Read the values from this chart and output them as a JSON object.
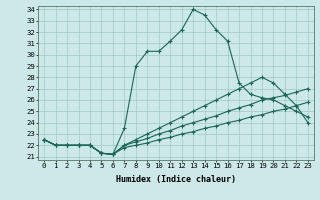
{
  "xlabel": "Humidex (Indice chaleur)",
  "bg_color": "#cde8e8",
  "grid_color": "#a0c8c0",
  "line_color": "#1a6655",
  "xmin": -0.5,
  "xmax": 23.5,
  "ymin": 20.7,
  "ymax": 34.3,
  "yticks": [
    21,
    22,
    23,
    24,
    25,
    26,
    27,
    28,
    29,
    30,
    31,
    32,
    33,
    34
  ],
  "xticks": [
    0,
    1,
    2,
    3,
    4,
    5,
    6,
    7,
    8,
    9,
    10,
    11,
    12,
    13,
    14,
    15,
    16,
    17,
    18,
    19,
    20,
    21,
    22,
    23
  ],
  "lines": [
    {
      "x": [
        0,
        1,
        2,
        3,
        4,
        5,
        6,
        7,
        8,
        9,
        10,
        11,
        12,
        13,
        14,
        15,
        16,
        17,
        18,
        19,
        20,
        21,
        22,
        23
      ],
      "y": [
        22.5,
        22.0,
        22.0,
        22.0,
        22.0,
        21.3,
        21.2,
        23.5,
        29.0,
        30.3,
        30.3,
        31.2,
        32.2,
        34.0,
        33.5,
        32.2,
        31.2,
        27.5,
        26.5,
        26.2,
        26.0,
        25.5,
        25.0,
        24.5
      ]
    },
    {
      "x": [
        0,
        1,
        2,
        3,
        4,
        5,
        6,
        7,
        8,
        9,
        10,
        11,
        12,
        13,
        14,
        15,
        16,
        17,
        18,
        19,
        20,
        21,
        22,
        23
      ],
      "y": [
        22.5,
        22.0,
        22.0,
        22.0,
        22.0,
        21.3,
        21.2,
        22.0,
        22.5,
        23.0,
        23.5,
        24.0,
        24.5,
        25.0,
        25.5,
        26.0,
        26.5,
        27.0,
        27.5,
        28.0,
        27.5,
        26.5,
        25.5,
        24.0
      ]
    },
    {
      "x": [
        0,
        1,
        2,
        3,
        4,
        5,
        6,
        7,
        8,
        9,
        10,
        11,
        12,
        13,
        14,
        15,
        16,
        17,
        18,
        19,
        20,
        21,
        22,
        23
      ],
      "y": [
        22.5,
        22.0,
        22.0,
        22.0,
        22.0,
        21.3,
        21.2,
        22.0,
        22.3,
        22.6,
        23.0,
        23.3,
        23.7,
        24.0,
        24.3,
        24.6,
        25.0,
        25.3,
        25.6,
        26.0,
        26.2,
        26.4,
        26.7,
        27.0
      ]
    },
    {
      "x": [
        0,
        1,
        2,
        3,
        4,
        5,
        6,
        7,
        8,
        9,
        10,
        11,
        12,
        13,
        14,
        15,
        16,
        17,
        18,
        19,
        20,
        21,
        22,
        23
      ],
      "y": [
        22.5,
        22.0,
        22.0,
        22.0,
        22.0,
        21.3,
        21.2,
        21.8,
        22.0,
        22.2,
        22.5,
        22.7,
        23.0,
        23.2,
        23.5,
        23.7,
        24.0,
        24.2,
        24.5,
        24.7,
        25.0,
        25.2,
        25.5,
        25.8
      ]
    }
  ]
}
